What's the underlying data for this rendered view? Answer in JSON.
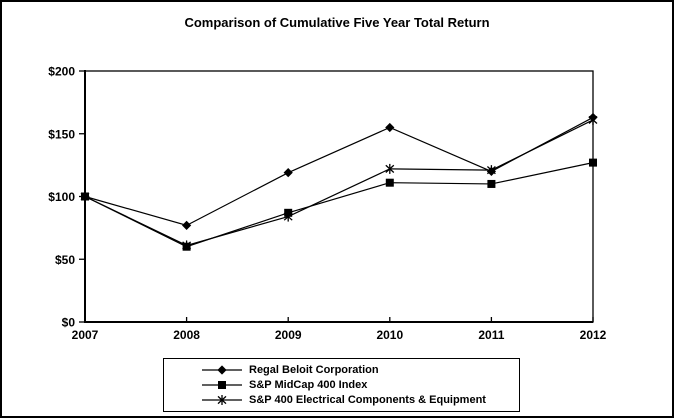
{
  "chart_data": {
    "type": "line",
    "title": "Comparison of Cumulative Five Year Total Return",
    "categories": [
      "2007",
      "2008",
      "2009",
      "2010",
      "2011",
      "2012"
    ],
    "series": [
      {
        "name": "Regal Beloit Corporation",
        "marker": "diamond",
        "color": "#000000",
        "values": [
          100,
          77,
          119,
          155,
          120,
          163
        ]
      },
      {
        "name": "S&P MidCap 400 Index",
        "marker": "square",
        "color": "#000000",
        "values": [
          100,
          60,
          87,
          111,
          110,
          127
        ]
      },
      {
        "name": "S&P 400 Electrical Components & Equipment",
        "marker": "star",
        "color": "#000000",
        "values": [
          100,
          61,
          84,
          122,
          121,
          161
        ]
      }
    ],
    "y_axis": {
      "tick_labels": [
        "$0",
        "$50",
        "$100",
        "$150",
        "$200"
      ],
      "tick_values": [
        0,
        50,
        100,
        150,
        200
      ],
      "min": 0,
      "max": 200
    },
    "x_axis": {
      "label": ""
    },
    "grid": false,
    "legend_position": "bottom",
    "colors": {
      "foreground": "#000000",
      "background": "#ffffff"
    }
  }
}
